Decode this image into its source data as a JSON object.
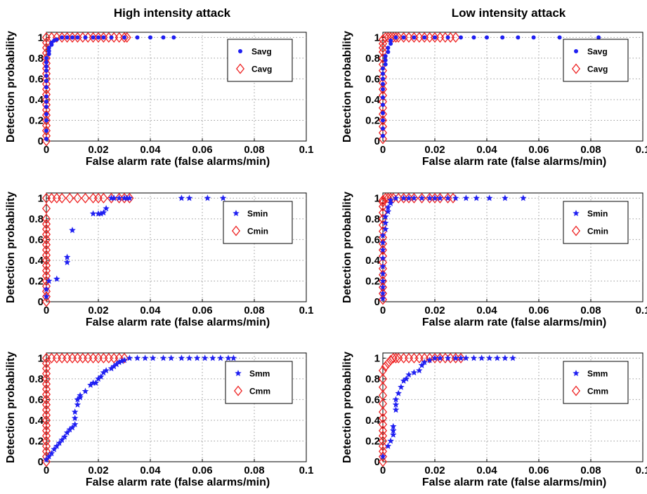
{
  "colors": {
    "s_series": "#1f1ff2",
    "c_series": "#ee2020"
  },
  "chart_data": [
    {
      "type": "scatter",
      "column_title": "High intensity attack",
      "xlabel": "False alarm rate (false alarms/min)",
      "ylabel": "Detection probability",
      "xlim": [
        0,
        0.1
      ],
      "ylim": [
        0,
        1.05
      ],
      "xticks": [
        "0",
        "0.02",
        "0.04",
        "0.06",
        "0.08",
        "0.1"
      ],
      "yticks": [
        "0",
        "0.2",
        "0.4",
        "0.6",
        "0.8",
        "1"
      ],
      "grid": true,
      "legend": "top-right",
      "series": [
        {
          "name": "Savg",
          "marker": "dot",
          "x": [
            0,
            0,
            0,
            0,
            0,
            0,
            0,
            0,
            0,
            0,
            0,
            0,
            0,
            0,
            0.001,
            0.001,
            0.001,
            0.002,
            0.002,
            0.003,
            0.004,
            0.006,
            0.008,
            0.01,
            0.012,
            0.015,
            0.018,
            0.02,
            0.022,
            0.025,
            0.03,
            0.035,
            0.04,
            0.045,
            0.049
          ],
          "y": [
            0.02,
            0.1,
            0.2,
            0.26,
            0.33,
            0.38,
            0.43,
            0.52,
            0.58,
            0.63,
            0.68,
            0.72,
            0.76,
            0.8,
            0.84,
            0.87,
            0.9,
            0.93,
            0.95,
            0.97,
            0.98,
            1,
            1,
            1,
            1,
            1,
            1,
            1,
            1,
            1,
            1,
            1,
            1,
            1,
            1
          ]
        },
        {
          "name": "Cavg",
          "marker": "diamond",
          "x": [
            0,
            0,
            0,
            0,
            0,
            0,
            0,
            0,
            0,
            0,
            0,
            0,
            0,
            0,
            0,
            0,
            0,
            0,
            0,
            0,
            0,
            0.002,
            0.004,
            0.006,
            0.008,
            0.01,
            0.012,
            0.014,
            0.016,
            0.018,
            0.02,
            0.022,
            0.024,
            0.026,
            0.028,
            0.03,
            0.031
          ],
          "y": [
            0,
            0.05,
            0.1,
            0.15,
            0.2,
            0.25,
            0.3,
            0.35,
            0.4,
            0.45,
            0.5,
            0.55,
            0.6,
            0.65,
            0.7,
            0.75,
            0.8,
            0.85,
            0.9,
            0.95,
            1,
            1,
            1,
            1,
            1,
            1,
            1,
            1,
            1,
            1,
            1,
            1,
            1,
            1,
            1,
            1,
            1
          ]
        }
      ]
    },
    {
      "type": "scatter",
      "column_title": "Low intensity attack",
      "xlabel": "False alarm rate (false alarms/min)",
      "ylabel": "Detection probability",
      "xlim": [
        0,
        0.1
      ],
      "ylim": [
        0,
        1.05
      ],
      "xticks": [
        "0",
        "0.02",
        "0.04",
        "0.06",
        "0.08",
        "0.1"
      ],
      "yticks": [
        "0",
        "0.2",
        "0.4",
        "0.6",
        "0.8",
        "1"
      ],
      "grid": true,
      "legend": "top-right",
      "series": [
        {
          "name": "Savg",
          "marker": "dot",
          "x": [
            0,
            0,
            0,
            0,
            0,
            0,
            0,
            0,
            0,
            0,
            0,
            0.001,
            0.001,
            0.001,
            0.002,
            0.002,
            0.003,
            0.003,
            0.005,
            0.008,
            0.012,
            0.016,
            0.02,
            0.025,
            0.03,
            0.035,
            0.04,
            0.046,
            0.052,
            0.058,
            0.068,
            0.083
          ],
          "y": [
            0.05,
            0.12,
            0.2,
            0.27,
            0.35,
            0.42,
            0.5,
            0.55,
            0.6,
            0.65,
            0.7,
            0.74,
            0.78,
            0.82,
            0.86,
            0.9,
            0.94,
            0.97,
            1,
            1,
            1,
            1,
            1,
            1,
            1,
            1,
            1,
            1,
            1,
            1,
            1,
            1
          ]
        },
        {
          "name": "Cavg",
          "marker": "diamond",
          "x": [
            0,
            0,
            0,
            0,
            0,
            0,
            0,
            0,
            0,
            0,
            0,
            0,
            0,
            0,
            0,
            0,
            0,
            0,
            0.001,
            0.002,
            0.003,
            0.004,
            0.005,
            0.006,
            0.008,
            0.01,
            0.012,
            0.014,
            0.016,
            0.018,
            0.02,
            0.022,
            0.024,
            0.026,
            0.028
          ],
          "y": [
            0.02,
            0.08,
            0.14,
            0.2,
            0.26,
            0.32,
            0.38,
            0.44,
            0.5,
            0.56,
            0.62,
            0.68,
            0.74,
            0.8,
            0.86,
            0.9,
            0.94,
            0.98,
            1,
            1,
            1,
            1,
            1,
            1,
            1,
            1,
            1,
            1,
            1,
            1,
            1,
            1,
            1,
            1,
            1
          ]
        }
      ]
    },
    {
      "type": "scatter",
      "column_title": "",
      "xlabel": "False alarm rate (false alarms/min)",
      "ylabel": "Detection probability",
      "xlim": [
        0,
        0.1
      ],
      "ylim": [
        0,
        1.05
      ],
      "xticks": [
        "0",
        "0.02",
        "0.04",
        "0.06",
        "0.08",
        "0.1"
      ],
      "yticks": [
        "0",
        "0.2",
        "0.4",
        "0.6",
        "0.8",
        "1"
      ],
      "grid": true,
      "legend": "top-right",
      "series": [
        {
          "name": "Smin",
          "marker": "star",
          "x": [
            0,
            0,
            0.001,
            0.004,
            0.008,
            0.008,
            0.01,
            0.018,
            0.02,
            0.021,
            0.022,
            0.023,
            0.025,
            0.026,
            0.028,
            0.03,
            0.031,
            0.032,
            0.052,
            0.055,
            0.062,
            0.068
          ],
          "y": [
            0.05,
            0.12,
            0.2,
            0.22,
            0.38,
            0.43,
            0.69,
            0.85,
            0.85,
            0.85,
            0.86,
            0.9,
            1,
            1,
            1,
            1,
            1,
            1,
            1,
            1,
            1,
            1
          ]
        },
        {
          "name": "Cmin",
          "marker": "diamond",
          "x": [
            0,
            0,
            0,
            0,
            0,
            0,
            0,
            0,
            0,
            0,
            0,
            0,
            0,
            0,
            0,
            0,
            0,
            0,
            0,
            0.002,
            0.004,
            0.006,
            0.009,
            0.012,
            0.015,
            0.018,
            0.02,
            0.022,
            0.025,
            0.028,
            0.03,
            0.032
          ],
          "y": [
            0,
            0.05,
            0.1,
            0.15,
            0.2,
            0.25,
            0.3,
            0.35,
            0.4,
            0.45,
            0.5,
            0.55,
            0.6,
            0.65,
            0.7,
            0.75,
            0.8,
            0.9,
            1,
            1,
            1,
            1,
            1,
            1,
            1,
            1,
            1,
            1,
            1,
            1,
            1,
            1
          ]
        }
      ]
    },
    {
      "type": "scatter",
      "column_title": "",
      "xlabel": "False alarm rate (false alarms/min)",
      "ylabel": "Detection probability",
      "xlim": [
        0,
        0.1
      ],
      "ylim": [
        0,
        1.05
      ],
      "xticks": [
        "0",
        "0.02",
        "0.04",
        "0.06",
        "0.08",
        "0.1"
      ],
      "yticks": [
        "0",
        "0.2",
        "0.4",
        "0.6",
        "0.8",
        "1"
      ],
      "grid": true,
      "legend": "top-right",
      "series": [
        {
          "name": "Smin",
          "marker": "star",
          "x": [
            0,
            0,
            0,
            0,
            0,
            0,
            0,
            0,
            0,
            0,
            0.001,
            0.001,
            0.001,
            0.002,
            0.002,
            0.003,
            0.003,
            0.005,
            0.008,
            0.01,
            0.012,
            0.015,
            0.018,
            0.02,
            0.022,
            0.025,
            0.028,
            0.032,
            0.036,
            0.041,
            0.047,
            0.054
          ],
          "y": [
            0.03,
            0.08,
            0.14,
            0.2,
            0.27,
            0.34,
            0.42,
            0.5,
            0.57,
            0.64,
            0.7,
            0.76,
            0.82,
            0.87,
            0.91,
            0.95,
            0.98,
            1,
            1,
            1,
            1,
            1,
            1,
            1,
            1,
            1,
            1,
            1,
            1,
            1,
            1,
            1
          ]
        },
        {
          "name": "Cmin",
          "marker": "diamond",
          "x": [
            0,
            0,
            0,
            0,
            0,
            0,
            0,
            0,
            0,
            0,
            0,
            0,
            0,
            0,
            0,
            0,
            0,
            0,
            0.001,
            0.002,
            0.003,
            0.004,
            0.006,
            0.008,
            0.01,
            0.012,
            0.015,
            0.018,
            0.02,
            0.022,
            0.025,
            0.027
          ],
          "y": [
            0.02,
            0.08,
            0.14,
            0.2,
            0.26,
            0.32,
            0.38,
            0.44,
            0.5,
            0.56,
            0.62,
            0.68,
            0.74,
            0.8,
            0.86,
            0.92,
            0.96,
            0.98,
            1,
            1,
            1,
            1,
            1,
            1,
            1,
            1,
            1,
            1,
            1,
            1,
            1,
            1
          ]
        }
      ]
    },
    {
      "type": "scatter",
      "column_title": "",
      "xlabel": "False alarm rate (false alarms/min)",
      "ylabel": "Detection probability",
      "xlim": [
        0,
        0.1
      ],
      "ylim": [
        0,
        1.05
      ],
      "xticks": [
        "0",
        "0.02",
        "0.04",
        "0.06",
        "0.08",
        "0.1"
      ],
      "yticks": [
        "0",
        "0.2",
        "0.4",
        "0.6",
        "0.8",
        "1"
      ],
      "grid": true,
      "legend": "top-right",
      "series": [
        {
          "name": "Smm",
          "marker": "star",
          "x": [
            0,
            0.001,
            0.002,
            0.003,
            0.004,
            0.005,
            0.006,
            0.007,
            0.008,
            0.009,
            0.01,
            0.011,
            0.011,
            0.011,
            0.012,
            0.012,
            0.013,
            0.013,
            0.015,
            0.017,
            0.018,
            0.019,
            0.02,
            0.021,
            0.022,
            0.023,
            0.025,
            0.026,
            0.027,
            0.028,
            0.029,
            0.03,
            0.032,
            0.035,
            0.038,
            0.041,
            0.045,
            0.048,
            0.052,
            0.055,
            0.058,
            0.061,
            0.064,
            0.067,
            0.07,
            0.072
          ],
          "y": [
            0.02,
            0.05,
            0.08,
            0.12,
            0.15,
            0.18,
            0.21,
            0.24,
            0.28,
            0.31,
            0.33,
            0.36,
            0.42,
            0.48,
            0.55,
            0.6,
            0.62,
            0.64,
            0.68,
            0.74,
            0.76,
            0.76,
            0.8,
            0.82,
            0.86,
            0.88,
            0.9,
            0.92,
            0.94,
            0.96,
            0.97,
            0.98,
            1,
            1,
            1,
            1,
            1,
            1,
            1,
            1,
            1,
            1,
            1,
            1,
            1,
            1
          ]
        },
        {
          "name": "Cmm",
          "marker": "diamond",
          "x": [
            0,
            0,
            0,
            0,
            0,
            0,
            0,
            0,
            0,
            0,
            0,
            0,
            0,
            0,
            0,
            0,
            0,
            0,
            0,
            0,
            0,
            0.002,
            0.004,
            0.006,
            0.008,
            0.01,
            0.012,
            0.014,
            0.016,
            0.018,
            0.02,
            0.022,
            0.024,
            0.026,
            0.028,
            0.03
          ],
          "y": [
            0,
            0.05,
            0.1,
            0.15,
            0.2,
            0.25,
            0.3,
            0.35,
            0.4,
            0.45,
            0.5,
            0.55,
            0.6,
            0.65,
            0.7,
            0.75,
            0.8,
            0.85,
            0.9,
            0.95,
            1,
            1,
            1,
            1,
            1,
            1,
            1,
            1,
            1,
            1,
            1,
            1,
            1,
            1,
            1,
            1
          ]
        }
      ]
    },
    {
      "type": "scatter",
      "column_title": "",
      "xlabel": "False alarm rate (false alarms/min)",
      "ylabel": "Detection probability",
      "xlim": [
        0,
        0.1
      ],
      "ylim": [
        0,
        1.05
      ],
      "xticks": [
        "0",
        "0.02",
        "0.04",
        "0.06",
        "0.08",
        "0.1"
      ],
      "yticks": [
        "0",
        "0.2",
        "0.4",
        "0.6",
        "0.8",
        "1"
      ],
      "grid": true,
      "legend": "top-right",
      "series": [
        {
          "name": "Smm",
          "marker": "star",
          "x": [
            0,
            0.002,
            0.003,
            0.004,
            0.004,
            0.004,
            0.005,
            0.005,
            0.005,
            0.006,
            0.007,
            0.008,
            0.009,
            0.01,
            0.012,
            0.014,
            0.015,
            0.016,
            0.018,
            0.02,
            0.022,
            0.025,
            0.028,
            0.03,
            0.032,
            0.035,
            0.038,
            0.041,
            0.044,
            0.047,
            0.05
          ],
          "y": [
            0.05,
            0.15,
            0.2,
            0.26,
            0.3,
            0.34,
            0.5,
            0.55,
            0.6,
            0.66,
            0.72,
            0.78,
            0.8,
            0.84,
            0.86,
            0.88,
            0.93,
            0.96,
            0.98,
            1,
            1,
            1,
            1,
            1,
            1,
            1,
            1,
            1,
            1,
            1,
            1
          ]
        },
        {
          "name": "Cmm",
          "marker": "diamond",
          "x": [
            0,
            0,
            0,
            0,
            0,
            0,
            0,
            0,
            0,
            0,
            0,
            0,
            0,
            0,
            0,
            0.001,
            0.002,
            0.003,
            0.004,
            0.005,
            0.006,
            0.008,
            0.01,
            0.012,
            0.014,
            0.016,
            0.018,
            0.02,
            0.022,
            0.024,
            0.026,
            0.028,
            0.03
          ],
          "y": [
            0,
            0.05,
            0.1,
            0.15,
            0.2,
            0.25,
            0.3,
            0.36,
            0.42,
            0.48,
            0.56,
            0.64,
            0.72,
            0.8,
            0.88,
            0.92,
            0.95,
            0.98,
            1,
            1,
            1,
            1,
            1,
            1,
            1,
            1,
            1,
            1,
            1,
            1,
            1,
            1,
            1
          ]
        }
      ]
    }
  ]
}
